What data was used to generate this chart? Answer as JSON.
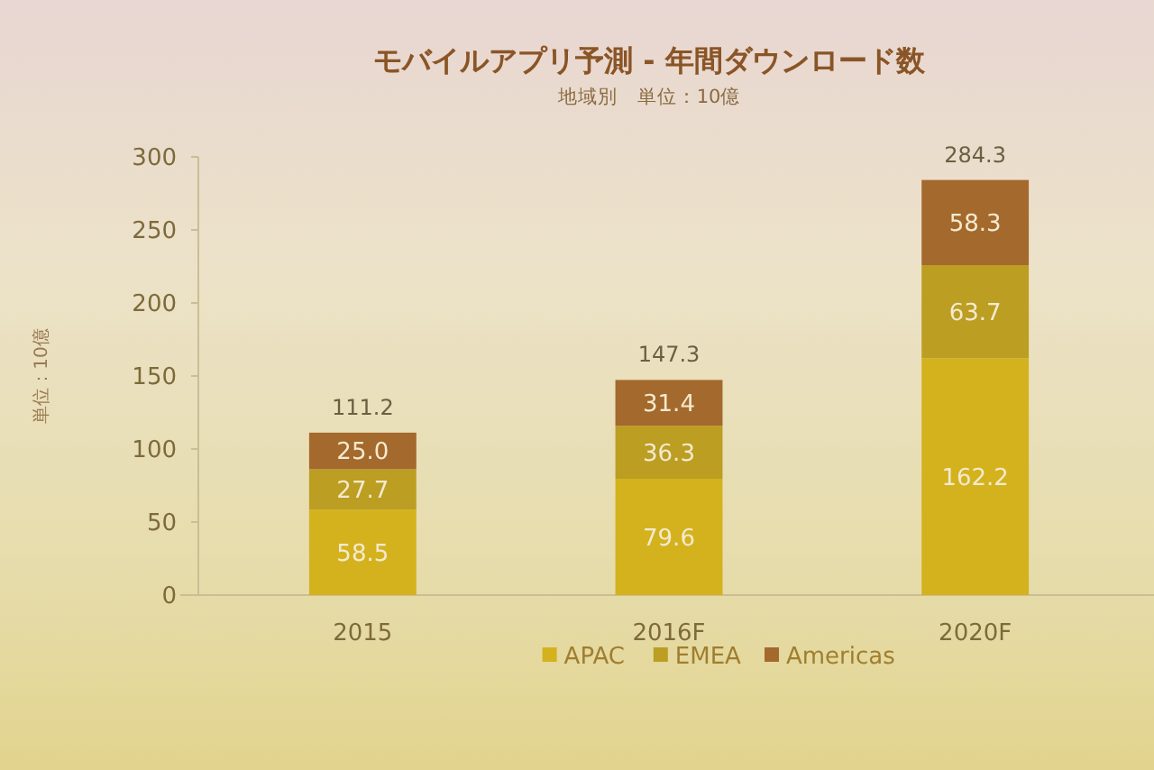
{
  "chart_data": {
    "type": "bar",
    "title": "モバイルアプリ予測 - 年間ダウンロード数",
    "subtitle": "地域別　単位：10億",
    "ylabel": "単位：10億",
    "categories": [
      "2015",
      "2016F",
      "2020F"
    ],
    "series": [
      {
        "name": "APAC",
        "color": "#d4b21e",
        "values": [
          58.5,
          79.6,
          162.2
        ],
        "value_labels": [
          "58.5",
          "79.6",
          "162.2"
        ]
      },
      {
        "name": "EMEA",
        "color": "#bb9e22",
        "values": [
          27.7,
          36.3,
          63.7
        ],
        "value_labels": [
          "27.7",
          "36.3",
          "63.7"
        ]
      },
      {
        "name": "Americas",
        "color": "#a4692c",
        "values": [
          25.0,
          31.4,
          58.3
        ],
        "value_labels": [
          "25.0",
          "31.4",
          "58.3"
        ]
      }
    ],
    "stacked": true,
    "ylim": [
      0,
      300
    ],
    "yticks": [
      0,
      50,
      100,
      150,
      200,
      250,
      300
    ],
    "totals": [
      "111.2",
      "147.3",
      "284.3"
    ],
    "legend": "bottom"
  }
}
